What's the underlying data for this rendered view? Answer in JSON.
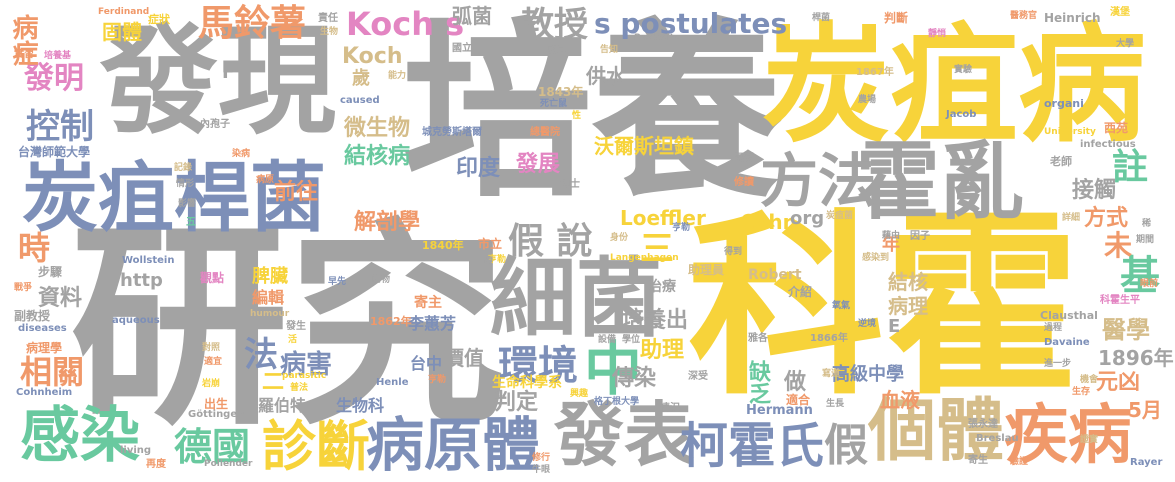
{
  "palette": {
    "gray": "#a3a3a3",
    "yellow": "#f7d33a",
    "blue": "#7d8fb8",
    "green": "#69c99f",
    "orange": "#f0996a",
    "pink": "#e385c2",
    "tan": "#d5bd8a",
    "lime": "#b6d85a"
  },
  "words": [
    {
      "text": "培養",
      "color": "gray"
    },
    {
      "text": "研究",
      "color": "gray"
    },
    {
      "text": "科霍",
      "color": "yellow"
    },
    {
      "text": "炭疽病",
      "color": "yellow"
    },
    {
      "text": "發現",
      "color": "gray"
    },
    {
      "text": "炭疽桿菌",
      "color": "blue"
    },
    {
      "text": "霍亂",
      "color": "gray"
    },
    {
      "text": "細菌",
      "color": "gray"
    },
    {
      "text": "方法",
      "color": "gray"
    },
    {
      "text": "發表",
      "color": "gray"
    },
    {
      "text": "感染",
      "color": "green"
    },
    {
      "text": "個體",
      "color": "tan"
    },
    {
      "text": "疾病",
      "color": "orange"
    },
    {
      "text": "病原體",
      "color": "blue"
    },
    {
      "text": "柯霍氏",
      "color": "blue"
    },
    {
      "text": "診斷",
      "color": "yellow"
    },
    {
      "text": "馬鈴薯",
      "color": "orange"
    },
    {
      "text": "Koch s",
      "color": "pink"
    },
    {
      "text": "s postulates",
      "color": "blue"
    },
    {
      "text": "教授",
      "color": "gray"
    },
    {
      "text": "假 說",
      "color": "gray"
    },
    {
      "text": "環境",
      "color": "blue"
    },
    {
      "text": "中",
      "color": "green"
    },
    {
      "text": "德國",
      "color": "green"
    },
    {
      "text": "假",
      "color": "gray"
    },
    {
      "text": "註",
      "color": "green"
    },
    {
      "text": "基",
      "color": "green"
    },
    {
      "text": "未",
      "color": "orange"
    },
    {
      "text": "時",
      "color": "orange"
    },
    {
      "text": "發明",
      "color": "pink"
    },
    {
      "text": "控制",
      "color": "blue"
    },
    {
      "text": "病症",
      "color": "orange"
    },
    {
      "text": "相關",
      "color": "orange"
    },
    {
      "text": "資料",
      "color": "gray"
    },
    {
      "text": "法",
      "color": "blue"
    },
    {
      "text": "病害",
      "color": "blue"
    },
    {
      "text": "Koch",
      "color": "tan"
    },
    {
      "text": "微生物",
      "color": "tan"
    },
    {
      "text": "結核病",
      "color": "green"
    },
    {
      "text": "前往",
      "color": "orange"
    },
    {
      "text": "解剖學",
      "color": "orange"
    },
    {
      "text": "印度",
      "color": "blue"
    },
    {
      "text": "發展",
      "color": "pink"
    },
    {
      "text": "沃爾斯坦鎮",
      "color": "yellow"
    },
    {
      "text": "Loeffler",
      "color": "yellow"
    },
    {
      "text": "Cohn",
      "color": "yellow"
    },
    {
      "text": "org",
      "color": "gray"
    },
    {
      "text": "方式",
      "color": "orange"
    },
    {
      "text": "醫學",
      "color": "tan"
    },
    {
      "text": "1896年",
      "color": "gray"
    },
    {
      "text": "元凶",
      "color": "orange"
    },
    {
      "text": "5月",
      "color": "orange"
    },
    {
      "text": "傳染",
      "color": "gray"
    },
    {
      "text": "判定",
      "color": "gray"
    },
    {
      "text": "價值",
      "color": "gray"
    },
    {
      "text": "助理",
      "color": "yellow"
    },
    {
      "text": "培養出",
      "color": "gray"
    },
    {
      "text": "缺乏",
      "color": "green"
    },
    {
      "text": "做",
      "color": "gray"
    },
    {
      "text": "高級中學",
      "color": "blue"
    },
    {
      "text": "血液",
      "color": "orange"
    },
    {
      "text": "接觸",
      "color": "gray"
    },
    {
      "text": "結核",
      "color": "tan"
    },
    {
      "text": "病理",
      "color": "tan"
    },
    {
      "text": "供水",
      "color": "gray"
    },
    {
      "text": "弧菌",
      "color": "gray"
    },
    {
      "text": "固體",
      "color": "yellow"
    },
    {
      "text": "李蕙芳",
      "color": "blue"
    },
    {
      "text": "台中",
      "color": "blue"
    },
    {
      "text": "生命科學系",
      "color": "yellow"
    },
    {
      "text": "生物科",
      "color": "blue"
    },
    {
      "text": "羅伯特",
      "color": "gray"
    },
    {
      "text": "脾臟",
      "color": "yellow"
    },
    {
      "text": "編輯",
      "color": "orange"
    },
    {
      "text": "http",
      "color": "gray"
    },
    {
      "text": "歲",
      "color": "tan"
    },
    {
      "text": "二",
      "color": "yellow"
    },
    {
      "text": "三",
      "color": "yellow"
    },
    {
      "text": "年",
      "color": "orange"
    },
    {
      "text": "E",
      "color": "gray"
    },
    {
      "text": "F",
      "color": "gray"
    },
    {
      "text": "Robert",
      "color": "tan"
    },
    {
      "text": "Heinrich",
      "color": "gray"
    },
    {
      "text": "Hermann",
      "color": "blue"
    },
    {
      "text": "Wollstein",
      "color": "blue"
    },
    {
      "text": "Davaine",
      "color": "blue"
    },
    {
      "text": "Clausthal",
      "color": "gray"
    },
    {
      "text": "Göttingen",
      "color": "gray"
    },
    {
      "text": "Henle",
      "color": "blue"
    },
    {
      "text": "Cohnheim",
      "color": "blue"
    },
    {
      "text": "Breslau",
      "color": "gray"
    },
    {
      "text": "Rayer",
      "color": "blue"
    },
    {
      "text": "Pollender",
      "color": "gray"
    },
    {
      "text": "Ferdinand",
      "color": "orange"
    },
    {
      "text": "Langenhagen",
      "color": "yellow"
    },
    {
      "text": "Jacob",
      "color": "blue"
    },
    {
      "text": "organi",
      "color": "blue"
    },
    {
      "text": "infectious",
      "color": "gray"
    },
    {
      "text": "University",
      "color": "yellow"
    },
    {
      "text": "diseases",
      "color": "blue"
    },
    {
      "text": "aqueous",
      "color": "blue"
    },
    {
      "text": "humour",
      "color": "tan"
    },
    {
      "text": "parasitic",
      "color": "yellow"
    },
    {
      "text": "caused",
      "color": "blue"
    },
    {
      "text": "living",
      "color": "gray"
    },
    {
      "text": "Rackwitz",
      "color": "gray"
    },
    {
      "text": "1843年",
      "color": "tan"
    },
    {
      "text": "1840年",
      "color": "yellow"
    },
    {
      "text": "1862年",
      "color": "orange"
    },
    {
      "text": "1866年",
      "color": "gray"
    },
    {
      "text": "1867年",
      "color": "tan"
    },
    {
      "text": "市立",
      "color": "orange"
    },
    {
      "text": "國立",
      "color": "gray"
    },
    {
      "text": "認可",
      "color": "gray"
    },
    {
      "text": "城克勞斯塔爾",
      "color": "blue"
    },
    {
      "text": "總醫院",
      "color": "orange"
    },
    {
      "text": "台灣師範大學",
      "color": "blue"
    },
    {
      "text": "實習",
      "color": "orange"
    },
    {
      "text": "培養基",
      "color": "pink"
    },
    {
      "text": "症狀",
      "color": "yellow"
    },
    {
      "text": "責任",
      "color": "gray"
    },
    {
      "text": "生物",
      "color": "tan"
    },
    {
      "text": "能力",
      "color": "tan"
    },
    {
      "text": "死亡鼠",
      "color": "blue"
    },
    {
      "text": "性",
      "color": "yellow"
    },
    {
      "text": "告知",
      "color": "tan"
    },
    {
      "text": "內孢子",
      "color": "gray"
    },
    {
      "text": "染病",
      "color": "orange"
    },
    {
      "text": "記錄",
      "color": "tan"
    },
    {
      "text": "情形",
      "color": "gray"
    },
    {
      "text": "影響",
      "color": "gray"
    },
    {
      "text": "病原",
      "color": "orange"
    },
    {
      "text": "五",
      "color": "green"
    },
    {
      "text": "步驟",
      "color": "gray"
    },
    {
      "text": "觀點",
      "color": "pink"
    },
    {
      "text": "戰爭",
      "color": "orange"
    },
    {
      "text": "副教授",
      "color": "gray"
    },
    {
      "text": "病理學",
      "color": "orange"
    },
    {
      "text": "對照",
      "color": "tan"
    },
    {
      "text": "適宜",
      "color": "orange"
    },
    {
      "text": "岩崩",
      "color": "yellow"
    },
    {
      "text": "出生",
      "color": "orange"
    },
    {
      "text": "再度",
      "color": "orange"
    },
    {
      "text": "發生",
      "color": "gray"
    },
    {
      "text": "動物",
      "color": "gray"
    },
    {
      "text": "早先",
      "color": "blue"
    },
    {
      "text": "寄主",
      "color": "orange"
    },
    {
      "text": "普法",
      "color": "yellow"
    },
    {
      "text": "治療",
      "color": "gray"
    },
    {
      "text": "身份",
      "color": "tan"
    },
    {
      "text": "亨勒",
      "color": "blue"
    },
    {
      "text": "助理員",
      "color": "tan"
    },
    {
      "text": "介紹",
      "color": "gray"
    },
    {
      "text": "雅各",
      "color": "gray"
    },
    {
      "text": "氧氣",
      "color": "blue"
    },
    {
      "text": "逆境",
      "color": "blue"
    },
    {
      "text": "科霍生平",
      "color": "pink"
    },
    {
      "text": "過程",
      "color": "gray"
    },
    {
      "text": "進一步",
      "color": "gray"
    },
    {
      "text": "機會",
      "color": "tan"
    },
    {
      "text": "生存",
      "color": "orange"
    },
    {
      "text": "寫道",
      "color": "tan"
    },
    {
      "text": "生長",
      "color": "gray"
    },
    {
      "text": "深受",
      "color": "gray"
    },
    {
      "text": "情況",
      "color": "gray"
    },
    {
      "text": "格丁根大學",
      "color": "blue"
    },
    {
      "text": "興趣",
      "color": "yellow"
    },
    {
      "text": "學位",
      "color": "gray"
    },
    {
      "text": "設備",
      "color": "gray"
    },
    {
      "text": "張永達",
      "color": "gray"
    },
    {
      "text": "驗證",
      "color": "orange"
    },
    {
      "text": "寄生",
      "color": "gray"
    },
    {
      "text": "證實",
      "color": "tan"
    },
    {
      "text": "醫務官",
      "color": "orange"
    },
    {
      "text": "漢堡",
      "color": "yellow"
    },
    {
      "text": "判斷",
      "color": "orange"
    },
    {
      "text": "桿菌",
      "color": "gray"
    },
    {
      "text": "靜悄",
      "color": "pink"
    },
    {
      "text": "大學",
      "color": "gray"
    },
    {
      "text": "實驗",
      "color": "gray"
    },
    {
      "text": "眼前",
      "color": "orange"
    },
    {
      "text": "農場",
      "color": "gray"
    },
    {
      "text": "西苑",
      "color": "orange"
    },
    {
      "text": "老師",
      "color": "gray"
    },
    {
      "text": "炭疽菌",
      "color": "tan"
    },
    {
      "text": "因子",
      "color": "gray"
    },
    {
      "text": "藉由",
      "color": "gray"
    },
    {
      "text": "期間",
      "color": "gray"
    },
    {
      "text": "詳細",
      "color": "tan"
    },
    {
      "text": "感染到",
      "color": "tan"
    },
    {
      "text": "展現",
      "color": "gray"
    },
    {
      "text": "修讀",
      "color": "orange"
    },
    {
      "text": "博士",
      "color": "gray"
    },
    {
      "text": "亨勒",
      "color": "yellow"
    },
    {
      "text": "適合",
      "color": "orange"
    },
    {
      "text": "得到",
      "color": "gray"
    },
    {
      "text": "修行",
      "color": "orange"
    },
    {
      "text": "牛眼",
      "color": "gray"
    },
    {
      "text": "活",
      "color": "yellow"
    },
    {
      "text": "線",
      "color": "gray"
    },
    {
      "text": "稀",
      "color": "gray"
    },
    {
      "text": "亨勒",
      "color": "orange"
    }
  ]
}
